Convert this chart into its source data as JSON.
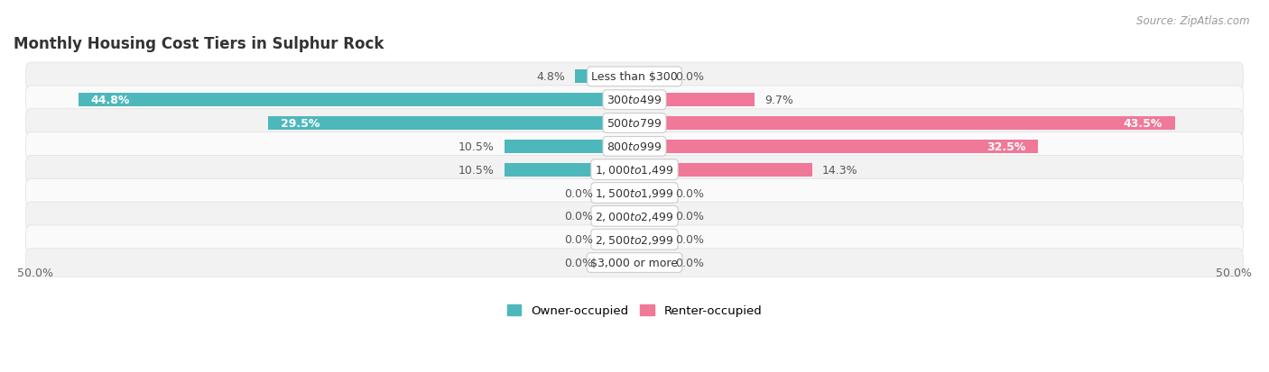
{
  "title": "Monthly Housing Cost Tiers in Sulphur Rock",
  "source": "Source: ZipAtlas.com",
  "categories": [
    "Less than $300",
    "$300 to $499",
    "$500 to $799",
    "$800 to $999",
    "$1,000 to $1,499",
    "$1,500 to $1,999",
    "$2,000 to $2,499",
    "$2,500 to $2,999",
    "$3,000 or more"
  ],
  "owner_values": [
    4.8,
    44.8,
    29.5,
    10.5,
    10.5,
    0.0,
    0.0,
    0.0,
    0.0
  ],
  "renter_values": [
    0.0,
    9.7,
    43.5,
    32.5,
    14.3,
    0.0,
    0.0,
    0.0,
    0.0
  ],
  "owner_color": "#4db8bc",
  "renter_color": "#f07898",
  "owner_color_zero": "#90d4d6",
  "renter_color_zero": "#f5aabe",
  "bar_height": 0.62,
  "xlim": 50.0,
  "bg_odd": "#f2f2f2",
  "bg_even": "#fafafa",
  "row_border": "#e0e0e0",
  "legend_owner": "Owner-occupied",
  "legend_renter": "Renter-occupied",
  "x_left_label": "50.0%",
  "x_right_label": "50.0%",
  "title_fontsize": 12,
  "label_fontsize": 9,
  "category_fontsize": 9,
  "source_fontsize": 8.5
}
